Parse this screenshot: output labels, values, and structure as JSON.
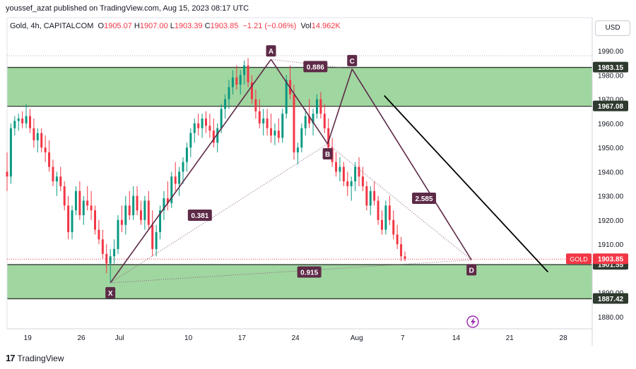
{
  "header": {
    "publisher": "youssef_azat published on TradingView.com, Aug 15, 2023 08:17 UTC",
    "symbol": "Gold, 4h, CAPITALCOM",
    "o_label": "O",
    "o_value": "1905.07",
    "h_label": "H",
    "h_value": "1907.00",
    "l_label": "L",
    "l_value": "1903.39",
    "c_label": "C",
    "c_value": "1903.85",
    "change": "−1.21 (−0.06%)",
    "vol_label": "Vol",
    "vol_value": "14.962K",
    "currency_button": "USD"
  },
  "footer": {
    "brand": "TradingView",
    "logo": "17"
  },
  "chart_data": {
    "type": "candlestick",
    "ylim": [
      1875,
      1995
    ],
    "y_ticks": [
      "1990.00",
      "1980.00",
      "1970.00",
      "1960.00",
      "1950.00",
      "1940.00",
      "1930.00",
      "1920.00",
      "1910.00",
      "1890.00",
      "1880.00"
    ],
    "y_tick_values": [
      1990,
      1980,
      1970,
      1960,
      1950,
      1940,
      1930,
      1920,
      1910,
      1890,
      1880
    ],
    "x_ticks": [
      "19",
      "26",
      "Jul",
      "10",
      "17",
      "24",
      "Aug",
      "7",
      "14",
      "21",
      "28"
    ],
    "x_tick_days": [
      19,
      26,
      31,
      40,
      47,
      54,
      62,
      68,
      75,
      82,
      89
    ],
    "xlim_days": [
      16.3,
      92.5
    ],
    "zones": [
      {
        "top": 1983.15,
        "bottom": 1967.08,
        "color": "#8fcf8f"
      },
      {
        "top": 1901.55,
        "bottom": 1887.42,
        "color": "#8fcf8f"
      }
    ],
    "price_labels": [
      {
        "text": "1983.15",
        "value": 1983.15,
        "style": "dark"
      },
      {
        "text": "1967.08",
        "value": 1967.08,
        "style": "dark"
      },
      {
        "text": "1901.55",
        "value": 1901.55,
        "style": "dark"
      },
      {
        "text": "1887.42",
        "value": 1887.42,
        "style": "dark"
      },
      {
        "text": "1903.85",
        "value": 1903.85,
        "style": "red"
      }
    ],
    "symbol_tag": "GOLD",
    "last_price": 1903.85,
    "pattern_points": [
      {
        "label": "X",
        "day": 29.8,
        "price": 1894.0
      },
      {
        "label": "A",
        "day": 50.8,
        "price": 1986.5
      },
      {
        "label": "B",
        "day": 58.2,
        "price": 1951.5
      },
      {
        "label": "C",
        "day": 61.4,
        "price": 1982.5
      },
      {
        "label": "D",
        "day": 77.0,
        "price": 1903.5
      }
    ],
    "ratios": [
      {
        "text": "0.381",
        "day": 41.5,
        "price": 1922.0
      },
      {
        "text": "0.886",
        "day": 56.6,
        "price": 1983.5
      },
      {
        "text": "2.585",
        "day": 70.8,
        "price": 1929.0
      },
      {
        "text": "0.915",
        "day": 55.8,
        "price": 1898.5
      }
    ],
    "trendline": {
      "from": {
        "day": 65.6,
        "price": 1971.5
      },
      "to": {
        "day": 87.0,
        "price": 1898.5
      }
    },
    "candles": [
      {
        "d": 16.3,
        "o": 1940,
        "h": 1948,
        "l": 1932,
        "c": 1938
      },
      {
        "d": 16.8,
        "o": 1938,
        "h": 1960,
        "l": 1935,
        "c": 1958
      },
      {
        "d": 17.3,
        "o": 1958,
        "h": 1963,
        "l": 1955,
        "c": 1961
      },
      {
        "d": 17.8,
        "o": 1961,
        "h": 1964,
        "l": 1957,
        "c": 1962
      },
      {
        "d": 18.3,
        "o": 1962,
        "h": 1965,
        "l": 1958,
        "c": 1960
      },
      {
        "d": 18.8,
        "o": 1960,
        "h": 1968,
        "l": 1958,
        "c": 1963
      },
      {
        "d": 19.3,
        "o": 1963,
        "h": 1966,
        "l": 1956,
        "c": 1958
      },
      {
        "d": 19.8,
        "o": 1958,
        "h": 1962,
        "l": 1950,
        "c": 1953
      },
      {
        "d": 20.3,
        "o": 1953,
        "h": 1958,
        "l": 1948,
        "c": 1956
      },
      {
        "d": 20.8,
        "o": 1956,
        "h": 1958,
        "l": 1948,
        "c": 1950
      },
      {
        "d": 21.3,
        "o": 1950,
        "h": 1955,
        "l": 1944,
        "c": 1948
      },
      {
        "d": 21.8,
        "o": 1948,
        "h": 1953,
        "l": 1940,
        "c": 1942
      },
      {
        "d": 22.3,
        "o": 1942,
        "h": 1945,
        "l": 1934,
        "c": 1936
      },
      {
        "d": 22.8,
        "o": 1936,
        "h": 1940,
        "l": 1930,
        "c": 1938
      },
      {
        "d": 23.3,
        "o": 1938,
        "h": 1942,
        "l": 1932,
        "c": 1934
      },
      {
        "d": 23.8,
        "o": 1934,
        "h": 1936,
        "l": 1924,
        "c": 1926
      },
      {
        "d": 24.3,
        "o": 1926,
        "h": 1930,
        "l": 1912,
        "c": 1915
      },
      {
        "d": 24.8,
        "o": 1915,
        "h": 1926,
        "l": 1912,
        "c": 1924
      },
      {
        "d": 25.3,
        "o": 1924,
        "h": 1934,
        "l": 1922,
        "c": 1932
      },
      {
        "d": 25.8,
        "o": 1932,
        "h": 1936,
        "l": 1920,
        "c": 1922
      },
      {
        "d": 26.3,
        "o": 1922,
        "h": 1930,
        "l": 1918,
        "c": 1928
      },
      {
        "d": 26.8,
        "o": 1928,
        "h": 1934,
        "l": 1924,
        "c": 1926
      },
      {
        "d": 27.3,
        "o": 1926,
        "h": 1932,
        "l": 1920,
        "c": 1924
      },
      {
        "d": 27.8,
        "o": 1924,
        "h": 1926,
        "l": 1914,
        "c": 1916
      },
      {
        "d": 28.3,
        "o": 1916,
        "h": 1920,
        "l": 1910,
        "c": 1912
      },
      {
        "d": 28.8,
        "o": 1912,
        "h": 1916,
        "l": 1904,
        "c": 1906
      },
      {
        "d": 29.3,
        "o": 1906,
        "h": 1910,
        "l": 1898,
        "c": 1902
      },
      {
        "d": 29.8,
        "o": 1902,
        "h": 1908,
        "l": 1894,
        "c": 1905
      },
      {
        "d": 30.3,
        "o": 1905,
        "h": 1912,
        "l": 1902,
        "c": 1908
      },
      {
        "d": 30.8,
        "o": 1908,
        "h": 1922,
        "l": 1906,
        "c": 1920
      },
      {
        "d": 31.3,
        "o": 1920,
        "h": 1926,
        "l": 1915,
        "c": 1918
      },
      {
        "d": 31.8,
        "o": 1918,
        "h": 1930,
        "l": 1914,
        "c": 1926
      },
      {
        "d": 32.3,
        "o": 1926,
        "h": 1932,
        "l": 1920,
        "c": 1922
      },
      {
        "d": 32.8,
        "o": 1922,
        "h": 1934,
        "l": 1920,
        "c": 1930
      },
      {
        "d": 33.3,
        "o": 1930,
        "h": 1934,
        "l": 1922,
        "c": 1924
      },
      {
        "d": 33.8,
        "o": 1924,
        "h": 1928,
        "l": 1918,
        "c": 1920
      },
      {
        "d": 34.3,
        "o": 1920,
        "h": 1930,
        "l": 1916,
        "c": 1928
      },
      {
        "d": 34.8,
        "o": 1928,
        "h": 1932,
        "l": 1916,
        "c": 1918
      },
      {
        "d": 35.3,
        "o": 1918,
        "h": 1924,
        "l": 1905,
        "c": 1908
      },
      {
        "d": 35.8,
        "o": 1908,
        "h": 1918,
        "l": 1905,
        "c": 1915
      },
      {
        "d": 36.3,
        "o": 1915,
        "h": 1926,
        "l": 1912,
        "c": 1924
      },
      {
        "d": 36.8,
        "o": 1924,
        "h": 1932,
        "l": 1920,
        "c": 1929
      },
      {
        "d": 37.3,
        "o": 1929,
        "h": 1936,
        "l": 1924,
        "c": 1927
      },
      {
        "d": 37.8,
        "o": 1927,
        "h": 1940,
        "l": 1925,
        "c": 1938
      },
      {
        "d": 38.3,
        "o": 1938,
        "h": 1944,
        "l": 1932,
        "c": 1935
      },
      {
        "d": 38.8,
        "o": 1935,
        "h": 1942,
        "l": 1930,
        "c": 1940
      },
      {
        "d": 39.3,
        "o": 1940,
        "h": 1946,
        "l": 1935,
        "c": 1944
      },
      {
        "d": 39.8,
        "o": 1944,
        "h": 1952,
        "l": 1940,
        "c": 1950
      },
      {
        "d": 40.3,
        "o": 1950,
        "h": 1958,
        "l": 1946,
        "c": 1956
      },
      {
        "d": 40.8,
        "o": 1956,
        "h": 1962,
        "l": 1952,
        "c": 1960
      },
      {
        "d": 41.3,
        "o": 1960,
        "h": 1964,
        "l": 1955,
        "c": 1958
      },
      {
        "d": 41.8,
        "o": 1958,
        "h": 1964,
        "l": 1954,
        "c": 1962
      },
      {
        "d": 42.3,
        "o": 1962,
        "h": 1965,
        "l": 1956,
        "c": 1959
      },
      {
        "d": 42.8,
        "o": 1959,
        "h": 1964,
        "l": 1954,
        "c": 1957
      },
      {
        "d": 43.3,
        "o": 1957,
        "h": 1962,
        "l": 1950,
        "c": 1952
      },
      {
        "d": 43.8,
        "o": 1952,
        "h": 1960,
        "l": 1948,
        "c": 1958
      },
      {
        "d": 44.3,
        "o": 1958,
        "h": 1968,
        "l": 1956,
        "c": 1966
      },
      {
        "d": 44.8,
        "o": 1966,
        "h": 1972,
        "l": 1962,
        "c": 1970
      },
      {
        "d": 45.3,
        "o": 1970,
        "h": 1978,
        "l": 1966,
        "c": 1975
      },
      {
        "d": 45.8,
        "o": 1975,
        "h": 1982,
        "l": 1972,
        "c": 1979
      },
      {
        "d": 46.3,
        "o": 1979,
        "h": 1984,
        "l": 1974,
        "c": 1976
      },
      {
        "d": 46.8,
        "o": 1976,
        "h": 1982,
        "l": 1972,
        "c": 1980
      },
      {
        "d": 47.3,
        "o": 1980,
        "h": 1986,
        "l": 1976,
        "c": 1984
      },
      {
        "d": 47.8,
        "o": 1984,
        "h": 1987,
        "l": 1975,
        "c": 1977
      },
      {
        "d": 48.3,
        "o": 1977,
        "h": 1980,
        "l": 1968,
        "c": 1970
      },
      {
        "d": 48.8,
        "o": 1970,
        "h": 1974,
        "l": 1962,
        "c": 1965
      },
      {
        "d": 49.3,
        "o": 1965,
        "h": 1970,
        "l": 1958,
        "c": 1960
      },
      {
        "d": 49.8,
        "o": 1960,
        "h": 1966,
        "l": 1955,
        "c": 1962
      },
      {
        "d": 50.3,
        "o": 1962,
        "h": 1966,
        "l": 1955,
        "c": 1958
      },
      {
        "d": 50.8,
        "o": 1958,
        "h": 1964,
        "l": 1952,
        "c": 1955
      },
      {
        "d": 51.3,
        "o": 1955,
        "h": 1960,
        "l": 1951,
        "c": 1957
      },
      {
        "d": 51.8,
        "o": 1957,
        "h": 1962,
        "l": 1952,
        "c": 1954
      },
      {
        "d": 52.3,
        "o": 1954,
        "h": 1966,
        "l": 1952,
        "c": 1964
      },
      {
        "d": 52.8,
        "o": 1964,
        "h": 1980,
        "l": 1962,
        "c": 1978
      },
      {
        "d": 53.3,
        "o": 1978,
        "h": 1984,
        "l": 1970,
        "c": 1972
      },
      {
        "d": 53.8,
        "o": 1972,
        "h": 1976,
        "l": 1945,
        "c": 1948
      },
      {
        "d": 54.3,
        "o": 1948,
        "h": 1952,
        "l": 1943,
        "c": 1950
      },
      {
        "d": 54.8,
        "o": 1950,
        "h": 1960,
        "l": 1948,
        "c": 1958
      },
      {
        "d": 55.3,
        "o": 1958,
        "h": 1966,
        "l": 1955,
        "c": 1963
      },
      {
        "d": 55.8,
        "o": 1963,
        "h": 1970,
        "l": 1958,
        "c": 1960
      },
      {
        "d": 56.3,
        "o": 1960,
        "h": 1966,
        "l": 1955,
        "c": 1964
      },
      {
        "d": 56.8,
        "o": 1964,
        "h": 1972,
        "l": 1962,
        "c": 1970
      },
      {
        "d": 57.3,
        "o": 1970,
        "h": 1973,
        "l": 1962,
        "c": 1964
      },
      {
        "d": 57.8,
        "o": 1964,
        "h": 1968,
        "l": 1956,
        "c": 1958
      },
      {
        "d": 58.3,
        "o": 1958,
        "h": 1962,
        "l": 1948,
        "c": 1950
      },
      {
        "d": 58.8,
        "o": 1950,
        "h": 1954,
        "l": 1942,
        "c": 1944
      },
      {
        "d": 59.3,
        "o": 1944,
        "h": 1948,
        "l": 1938,
        "c": 1940
      },
      {
        "d": 59.8,
        "o": 1940,
        "h": 1946,
        "l": 1936,
        "c": 1942
      },
      {
        "d": 60.3,
        "o": 1942,
        "h": 1944,
        "l": 1934,
        "c": 1936
      },
      {
        "d": 60.8,
        "o": 1936,
        "h": 1940,
        "l": 1930,
        "c": 1934
      },
      {
        "d": 61.3,
        "o": 1934,
        "h": 1938,
        "l": 1928,
        "c": 1936
      },
      {
        "d": 61.8,
        "o": 1936,
        "h": 1944,
        "l": 1932,
        "c": 1942
      },
      {
        "d": 62.3,
        "o": 1942,
        "h": 1946,
        "l": 1934,
        "c": 1938
      },
      {
        "d": 62.8,
        "o": 1938,
        "h": 1942,
        "l": 1932,
        "c": 1934
      },
      {
        "d": 63.3,
        "o": 1934,
        "h": 1936,
        "l": 1924,
        "c": 1926
      },
      {
        "d": 63.8,
        "o": 1926,
        "h": 1934,
        "l": 1922,
        "c": 1932
      },
      {
        "d": 64.3,
        "o": 1932,
        "h": 1936,
        "l": 1926,
        "c": 1928
      },
      {
        "d": 64.8,
        "o": 1928,
        "h": 1930,
        "l": 1918,
        "c": 1920
      },
      {
        "d": 65.3,
        "o": 1920,
        "h": 1924,
        "l": 1914,
        "c": 1916
      },
      {
        "d": 65.8,
        "o": 1916,
        "h": 1928,
        "l": 1914,
        "c": 1926
      },
      {
        "d": 66.3,
        "o": 1926,
        "h": 1930,
        "l": 1918,
        "c": 1920
      },
      {
        "d": 66.8,
        "o": 1920,
        "h": 1924,
        "l": 1912,
        "c": 1914
      },
      {
        "d": 67.3,
        "o": 1914,
        "h": 1918,
        "l": 1908,
        "c": 1910
      },
      {
        "d": 67.8,
        "o": 1910,
        "h": 1913,
        "l": 1903,
        "c": 1905
      },
      {
        "d": 68.3,
        "o": 1905,
        "h": 1907,
        "l": 1903,
        "c": 1904
      }
    ]
  }
}
